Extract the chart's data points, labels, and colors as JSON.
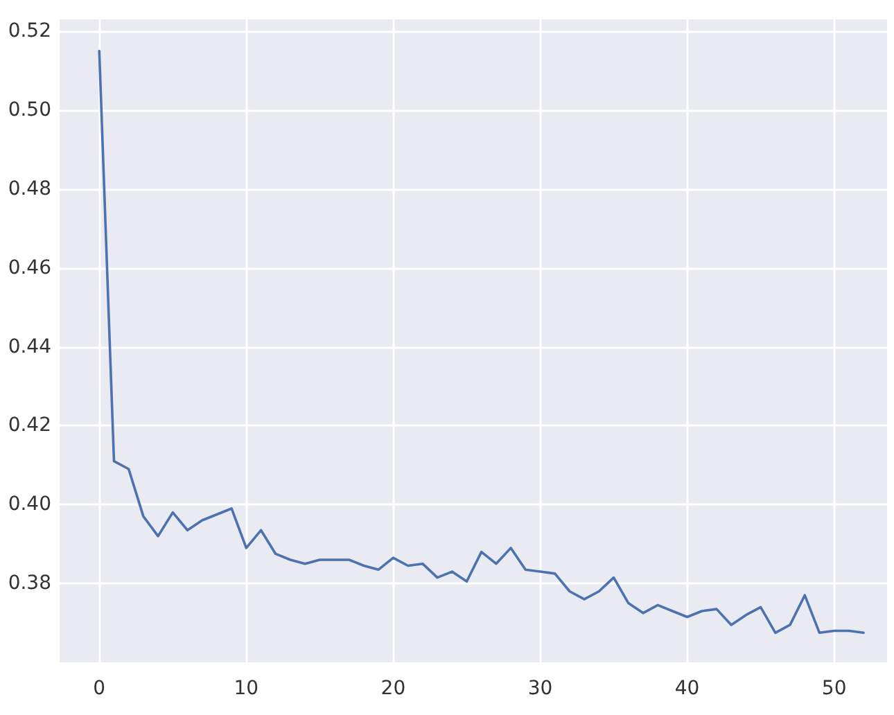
{
  "chart_data": {
    "type": "line",
    "x": [
      0,
      1,
      2,
      3,
      4,
      5,
      6,
      7,
      8,
      9,
      10,
      11,
      12,
      13,
      14,
      15,
      16,
      17,
      18,
      19,
      20,
      21,
      22,
      23,
      24,
      25,
      26,
      27,
      28,
      29,
      30,
      31,
      32,
      33,
      34,
      35,
      36,
      37,
      38,
      39,
      40,
      41,
      42,
      43,
      44,
      45,
      46,
      47,
      48,
      49,
      50,
      51,
      52
    ],
    "series": [
      {
        "color": "#4c72b0",
        "values": [
          0.515,
          0.411,
          0.409,
          0.397,
          0.392,
          0.398,
          0.3935,
          0.396,
          0.3975,
          0.399,
          0.389,
          0.3935,
          0.3875,
          0.386,
          0.385,
          0.386,
          0.386,
          0.386,
          0.3845,
          0.3835,
          0.3865,
          0.3845,
          0.385,
          0.3815,
          0.383,
          0.3805,
          0.388,
          0.385,
          0.389,
          0.3835,
          0.383,
          0.3825,
          0.378,
          0.376,
          0.378,
          0.3815,
          0.375,
          0.3725,
          0.3745,
          0.373,
          0.3715,
          0.373,
          0.3735,
          0.3695,
          0.372,
          0.374,
          0.3675,
          0.3695,
          0.377,
          0.3675,
          0.368,
          0.368,
          0.3675
        ]
      }
    ],
    "xlim": [
      -2.7,
      53.6
    ],
    "xticks": [
      0,
      10,
      20,
      30,
      40,
      50
    ],
    "ylim": [
      0.36,
      0.523
    ],
    "yticks": [
      0.38,
      {
        "value": 0.4,
        "label": "0.40"
      },
      0.42,
      0.44,
      0.46,
      0.48,
      {
        "value": 0.5,
        "label": "0.50"
      },
      0.52
    ],
    "grid": true,
    "marker": "none",
    "line_style": "solid"
  }
}
